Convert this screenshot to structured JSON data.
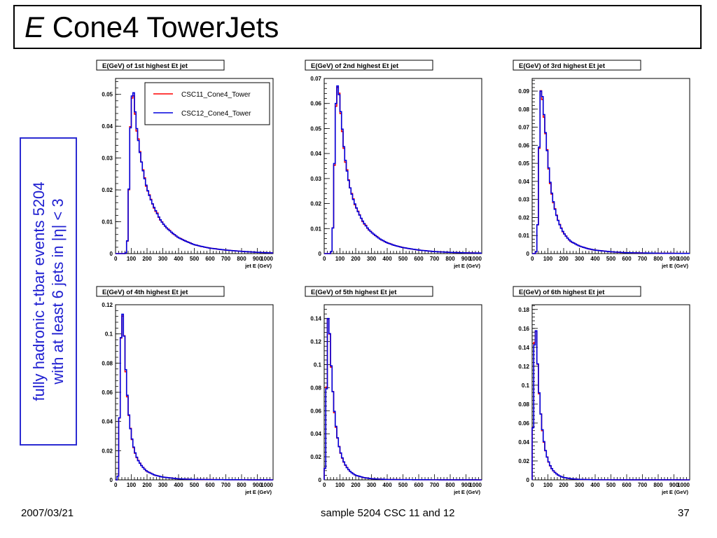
{
  "slide": {
    "title_italic": "E",
    "title_rest": "Cone4 TowerJets",
    "side_line1": "fully hadronic t-tbar events 5204",
    "side_line2_pre": "with at least 6 jets in |",
    "side_line2_sym": "η",
    "side_line2_post": "| < 3",
    "footer_date": "2007/03/21",
    "footer_center": "sample 5204 CSC 11 and 12",
    "page_number": "37"
  },
  "colors": {
    "series1": "#ff0000",
    "series2": "#0000dd"
  },
  "chart_data": [
    {
      "type": "line",
      "title": "E(GeV) of 1st highest Et jet",
      "xlabel": "jet E (GeV)",
      "xlim": [
        0,
        1000
      ],
      "ylim": [
        0,
        0.055
      ],
      "x_ticks": [
        "0",
        "100",
        "200",
        "300",
        "400",
        "500",
        "600",
        "700",
        "800",
        "900",
        "1000"
      ],
      "y_ticks": [
        "0",
        "0.01",
        "0.02",
        "0.03",
        "0.04",
        "0.05"
      ],
      "y_tick_values": [
        0,
        0.01,
        0.02,
        0.03,
        0.04,
        0.05
      ],
      "legend": [
        "CSC11_Cone4_Tower",
        "CSC12_Cone4_Tower"
      ],
      "series_points": [
        [
          60,
          0
        ],
        [
          70,
          0.0005
        ],
        [
          80,
          0.0075
        ],
        [
          90,
          0.033
        ],
        [
          100,
          0.046
        ],
        [
          110,
          0.053
        ],
        [
          120,
          0.048
        ],
        [
          130,
          0.041
        ],
        [
          140,
          0.0375
        ],
        [
          150,
          0.0335
        ],
        [
          160,
          0.03
        ],
        [
          170,
          0.0275
        ],
        [
          180,
          0.0245
        ],
        [
          190,
          0.0225
        ],
        [
          200,
          0.0205
        ],
        [
          220,
          0.0175
        ],
        [
          240,
          0.015
        ],
        [
          260,
          0.013
        ],
        [
          280,
          0.011
        ],
        [
          300,
          0.0095
        ],
        [
          330,
          0.0078
        ],
        [
          360,
          0.0065
        ],
        [
          400,
          0.005
        ],
        [
          450,
          0.0038
        ],
        [
          500,
          0.0028
        ],
        [
          550,
          0.0022
        ],
        [
          600,
          0.0017
        ],
        [
          700,
          0.0011
        ],
        [
          800,
          0.0007
        ],
        [
          900,
          0.0004
        ],
        [
          1000,
          0.0002
        ]
      ]
    },
    {
      "type": "line",
      "title": "E(GeV) of 2nd highest Et jet",
      "xlabel": "jet E (GeV)",
      "xlim": [
        0,
        1000
      ],
      "ylim": [
        0,
        0.07
      ],
      "x_ticks": [
        "0",
        "100",
        "200",
        "300",
        "400",
        "500",
        "600",
        "700",
        "800",
        "900",
        "1000"
      ],
      "y_ticks": [
        "0",
        "0.01",
        "0.02",
        "0.03",
        "0.04",
        "0.05",
        "0.06",
        "0.07"
      ],
      "y_tick_values": [
        0,
        0.01,
        0.02,
        0.03,
        0.04,
        0.05,
        0.06,
        0.07
      ],
      "series_points": [
        [
          40,
          0
        ],
        [
          50,
          0.0015
        ],
        [
          60,
          0.019
        ],
        [
          70,
          0.053
        ],
        [
          80,
          0.067
        ],
        [
          90,
          0.067
        ],
        [
          100,
          0.06
        ],
        [
          110,
          0.0535
        ],
        [
          120,
          0.046
        ],
        [
          130,
          0.0395
        ],
        [
          140,
          0.035
        ],
        [
          150,
          0.031
        ],
        [
          160,
          0.0275
        ],
        [
          180,
          0.0225
        ],
        [
          200,
          0.019
        ],
        [
          220,
          0.016
        ],
        [
          240,
          0.0135
        ],
        [
          260,
          0.0115
        ],
        [
          280,
          0.0098
        ],
        [
          300,
          0.0085
        ],
        [
          350,
          0.006
        ],
        [
          400,
          0.0043
        ],
        [
          450,
          0.0032
        ],
        [
          500,
          0.0024
        ],
        [
          600,
          0.0014
        ],
        [
          700,
          0.0008
        ],
        [
          800,
          0.0005
        ],
        [
          900,
          0.0003
        ],
        [
          1000,
          0.0002
        ]
      ]
    },
    {
      "type": "line",
      "title": "E(GeV) of 3rd highest Et jet",
      "xlabel": "jet E (GeV)",
      "xlim": [
        0,
        1000
      ],
      "ylim": [
        0,
        0.097
      ],
      "x_ticks": [
        "0",
        "100",
        "200",
        "300",
        "400",
        "500",
        "600",
        "700",
        "800",
        "900",
        "1000"
      ],
      "y_ticks": [
        "0",
        "0.01",
        "0.02",
        "0.03",
        "0.04",
        "0.05",
        "0.06",
        "0.07",
        "0.08",
        "0.09"
      ],
      "y_tick_values": [
        0,
        0.01,
        0.02,
        0.03,
        0.04,
        0.05,
        0.06,
        0.07,
        0.08,
        0.09
      ],
      "series_points": [
        [
          20,
          0
        ],
        [
          30,
          0.002
        ],
        [
          40,
          0.03
        ],
        [
          50,
          0.088
        ],
        [
          60,
          0.092
        ],
        [
          70,
          0.082
        ],
        [
          80,
          0.072
        ],
        [
          90,
          0.062
        ],
        [
          100,
          0.052
        ],
        [
          110,
          0.043
        ],
        [
          120,
          0.036
        ],
        [
          130,
          0.031
        ],
        [
          140,
          0.0265
        ],
        [
          150,
          0.0225
        ],
        [
          170,
          0.017
        ],
        [
          190,
          0.013
        ],
        [
          210,
          0.0102
        ],
        [
          230,
          0.008
        ],
        [
          250,
          0.0065
        ],
        [
          300,
          0.0042
        ],
        [
          350,
          0.0028
        ],
        [
          400,
          0.0019
        ],
        [
          500,
          0.001
        ],
        [
          600,
          0.0005
        ],
        [
          800,
          0.0002
        ],
        [
          1000,
          0.0001
        ]
      ]
    },
    {
      "type": "line",
      "title": "E(GeV) of 4th highest Et jet",
      "xlabel": "jet E (GeV)",
      "xlim": [
        0,
        1000
      ],
      "ylim": [
        0,
        0.12
      ],
      "x_ticks": [
        "0",
        "100",
        "200",
        "300",
        "400",
        "500",
        "600",
        "700",
        "800",
        "900",
        "1000"
      ],
      "y_ticks": [
        "0",
        "0.02",
        "0.04",
        "0.06",
        "0.08",
        "0.1",
        "0.12"
      ],
      "y_tick_values": [
        0,
        0.02,
        0.04,
        0.06,
        0.08,
        0.1,
        0.12
      ],
      "series_points": [
        [
          10,
          0
        ],
        [
          20,
          0.005
        ],
        [
          30,
          0.08
        ],
        [
          40,
          0.115
        ],
        [
          50,
          0.112
        ],
        [
          60,
          0.085
        ],
        [
          70,
          0.066
        ],
        [
          80,
          0.05
        ],
        [
          90,
          0.039
        ],
        [
          100,
          0.031
        ],
        [
          110,
          0.025
        ],
        [
          120,
          0.02
        ],
        [
          140,
          0.014
        ],
        [
          160,
          0.0105
        ],
        [
          180,
          0.0078
        ],
        [
          200,
          0.0058
        ],
        [
          250,
          0.0032
        ],
        [
          300,
          0.0019
        ],
        [
          400,
          0.0007
        ],
        [
          500,
          0.0003
        ],
        [
          700,
          0.0001
        ],
        [
          1000,
          0
        ]
      ]
    },
    {
      "type": "line",
      "title": "E(GeV) of 5th highest Et jet",
      "xlabel": "jet E (GeV)",
      "xlim": [
        0,
        1000
      ],
      "ylim": [
        0,
        0.152
      ],
      "x_ticks": [
        "0",
        "100",
        "200",
        "300",
        "400",
        "500",
        "600",
        "700",
        "800",
        "900",
        "1000"
      ],
      "y_ticks": [
        "0",
        "0.02",
        "0.04",
        "0.06",
        "0.08",
        "0.1",
        "0.12",
        "0.14"
      ],
      "y_tick_values": [
        0,
        0.02,
        0.04,
        0.06,
        0.08,
        0.1,
        0.12,
        0.14
      ],
      "series_points": [
        [
          0,
          0
        ],
        [
          10,
          0.02
        ],
        [
          20,
          0.138
        ],
        [
          30,
          0.142
        ],
        [
          40,
          0.112
        ],
        [
          50,
          0.086
        ],
        [
          60,
          0.067
        ],
        [
          70,
          0.052
        ],
        [
          80,
          0.041
        ],
        [
          90,
          0.032
        ],
        [
          100,
          0.0255
        ],
        [
          120,
          0.017
        ],
        [
          140,
          0.0115
        ],
        [
          160,
          0.008
        ],
        [
          180,
          0.0056
        ],
        [
          200,
          0.004
        ],
        [
          250,
          0.002
        ],
        [
          300,
          0.001
        ],
        [
          400,
          0.0003
        ],
        [
          600,
          0.0001
        ],
        [
          1000,
          0
        ]
      ]
    },
    {
      "type": "line",
      "title": "E(GeV) of 6th highest Et jet",
      "xlabel": "jet E (GeV)",
      "xlim": [
        0,
        1000
      ],
      "ylim": [
        0,
        0.185
      ],
      "x_ticks": [
        "0",
        "100",
        "200",
        "300",
        "400",
        "500",
        "600",
        "700",
        "800",
        "900",
        "1000"
      ],
      "y_ticks": [
        "0",
        "0.02",
        "0.04",
        "0.06",
        "0.08",
        "0.1",
        "0.12",
        "0.14",
        "0.16",
        "0.18"
      ],
      "y_tick_values": [
        0,
        0.02,
        0.04,
        0.06,
        0.08,
        0.1,
        0.12,
        0.14,
        0.16,
        0.18
      ],
      "series_points": [
        [
          0,
          0
        ],
        [
          10,
          0.11
        ],
        [
          20,
          0.175
        ],
        [
          30,
          0.14
        ],
        [
          40,
          0.105
        ],
        [
          50,
          0.079
        ],
        [
          60,
          0.06
        ],
        [
          70,
          0.046
        ],
        [
          80,
          0.035
        ],
        [
          90,
          0.027
        ],
        [
          100,
          0.021
        ],
        [
          120,
          0.013
        ],
        [
          140,
          0.0085
        ],
        [
          160,
          0.0056
        ],
        [
          180,
          0.0037
        ],
        [
          200,
          0.0025
        ],
        [
          250,
          0.0011
        ],
        [
          300,
          0.0005
        ],
        [
          400,
          0.0001
        ],
        [
          1000,
          0
        ]
      ]
    }
  ]
}
